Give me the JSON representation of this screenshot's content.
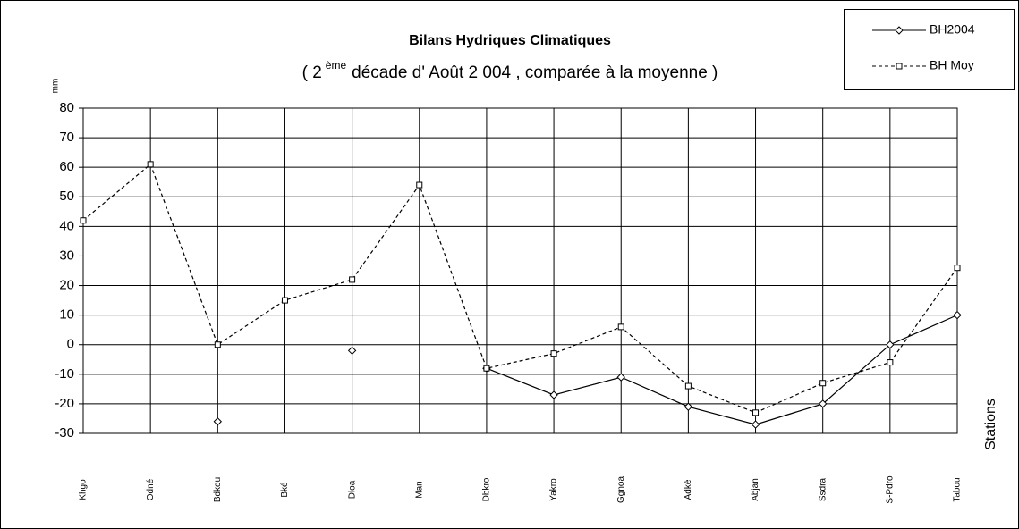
{
  "chart_data": {
    "type": "line",
    "title": "Bilans Hydriques Climatiques",
    "subtitle_start": "( 2",
    "subtitle_superscript": "ème",
    "subtitle_end": "décade   d' Août  2 004 , comparée à la moyenne )",
    "y_label": "mm",
    "x_label": "Stations",
    "categories": [
      "Khgo",
      "Odné",
      "Bdkou",
      "Bké",
      "Dloa",
      "Man",
      "Dbkro",
      "Yakro",
      "Ggnoa",
      "Adké",
      "Abjan",
      "Ssdra",
      "S-Pdro",
      "Tabou"
    ],
    "series": [
      {
        "name": "BH2004",
        "color": "#000000",
        "dash": "solid",
        "marker": "diamond",
        "values": [
          null,
          null,
          -26,
          null,
          -2,
          null,
          -8,
          -17,
          -11,
          -21,
          -27,
          -20,
          0,
          10
        ]
      },
      {
        "name": "BH Moy",
        "color": "#000000",
        "dash": "dashed",
        "marker": "square",
        "values": [
          42,
          61,
          0,
          15,
          22,
          54,
          -8,
          -3,
          6,
          -14,
          -23,
          -13,
          -6,
          26
        ]
      }
    ],
    "ylim": [
      -30,
      80
    ],
    "yticks": [
      80,
      70,
      60,
      50,
      40,
      30,
      20,
      10,
      0,
      -10,
      -20,
      -30
    ],
    "grid": true,
    "legend": "top-right"
  }
}
